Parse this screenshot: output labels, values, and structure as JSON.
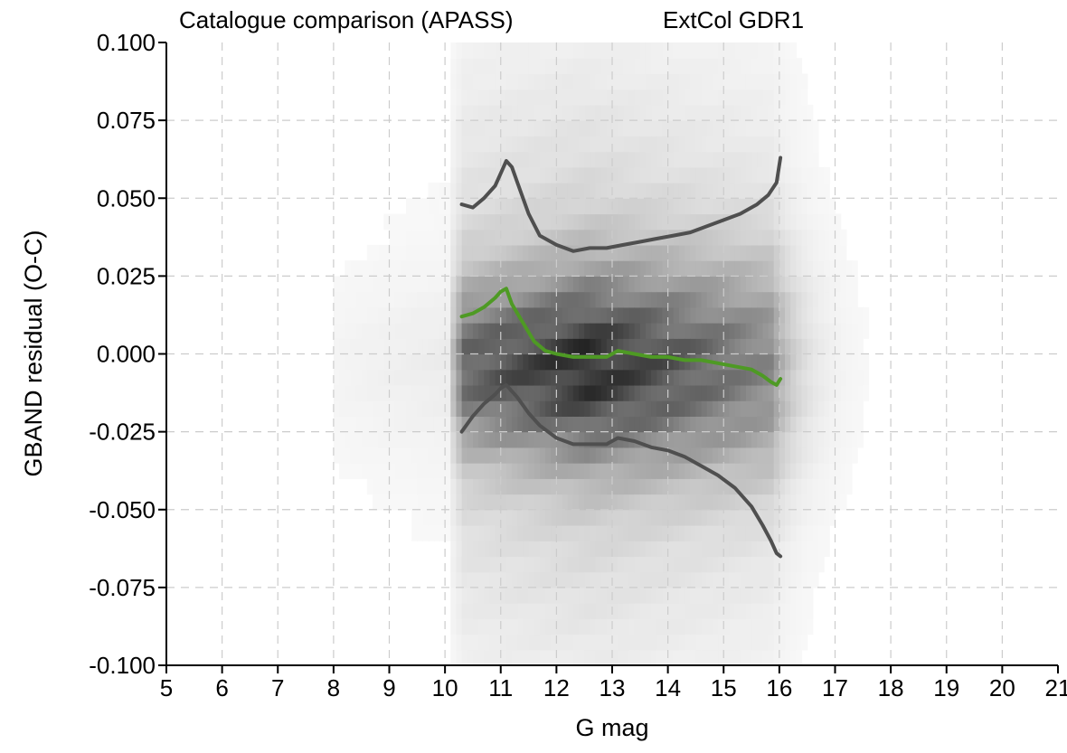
{
  "chart_data": {
    "type": "heatmap",
    "title": "Catalogue comparison (APASS)",
    "subtitle": "ExtCol GDR1",
    "xlabel": "G mag",
    "ylabel": "GBAND residual (O-C)",
    "xlim": [
      5,
      21
    ],
    "ylim": [
      -0.1,
      0.1
    ],
    "grid": true,
    "x_ticks": [
      "5",
      "6",
      "7",
      "8",
      "9",
      "10",
      "11",
      "12",
      "13",
      "14",
      "15",
      "16",
      "17",
      "18",
      "19",
      "20",
      "21"
    ],
    "y_ticks": [
      "0.100",
      "0.075",
      "0.050",
      "0.025",
      "0.000",
      "-0.025",
      "-0.050",
      "-0.075",
      "-0.100"
    ],
    "density": {
      "description_values": "relative source density, 0-1",
      "x_range": [
        8,
        17.5
      ],
      "peak_x": 12.5,
      "peak_y": -0.004
    },
    "series": [
      {
        "color": "#4f4f4f",
        "x": [
          10.3,
          10.5,
          10.7,
          10.9,
          11.0,
          11.1,
          11.2,
          11.3,
          11.5,
          11.7,
          12.0,
          12.3,
          12.6,
          12.9,
          13.2,
          13.5,
          13.8,
          14.1,
          14.4,
          14.7,
          15.0,
          15.3,
          15.6,
          15.8,
          15.95,
          16.02
        ],
        "y": [
          0.048,
          0.047,
          0.05,
          0.054,
          0.058,
          0.062,
          0.06,
          0.055,
          0.045,
          0.038,
          0.035,
          0.033,
          0.034,
          0.034,
          0.035,
          0.036,
          0.037,
          0.038,
          0.039,
          0.041,
          0.043,
          0.045,
          0.048,
          0.051,
          0.055,
          0.063
        ]
      },
      {
        "color": "#4e9a24",
        "x": [
          10.3,
          10.5,
          10.7,
          10.9,
          11.0,
          11.1,
          11.2,
          11.4,
          11.6,
          11.8,
          12.0,
          12.3,
          12.6,
          12.9,
          13.1,
          13.4,
          13.7,
          14.0,
          14.3,
          14.6,
          14.9,
          15.2,
          15.5,
          15.7,
          15.85,
          15.95,
          16.02
        ],
        "y": [
          0.012,
          0.013,
          0.015,
          0.018,
          0.02,
          0.021,
          0.016,
          0.01,
          0.004,
          0.001,
          0.0,
          -0.001,
          -0.001,
          -0.001,
          0.001,
          0.0,
          -0.001,
          -0.001,
          -0.002,
          -0.002,
          -0.003,
          -0.004,
          -0.005,
          -0.007,
          -0.009,
          -0.01,
          -0.008
        ]
      },
      {
        "color": "#4f4f4f",
        "x": [
          10.3,
          10.5,
          10.7,
          10.9,
          11.0,
          11.1,
          11.3,
          11.5,
          11.7,
          12.0,
          12.3,
          12.6,
          12.9,
          13.1,
          13.4,
          13.7,
          14.0,
          14.3,
          14.6,
          14.9,
          15.2,
          15.5,
          15.7,
          15.85,
          15.95,
          16.02
        ],
        "y": [
          -0.025,
          -0.02,
          -0.016,
          -0.013,
          -0.011,
          -0.01,
          -0.014,
          -0.019,
          -0.023,
          -0.027,
          -0.029,
          -0.029,
          -0.029,
          -0.027,
          -0.028,
          -0.03,
          -0.031,
          -0.033,
          -0.036,
          -0.039,
          -0.043,
          -0.049,
          -0.055,
          -0.06,
          -0.064,
          -0.065
        ]
      }
    ]
  }
}
